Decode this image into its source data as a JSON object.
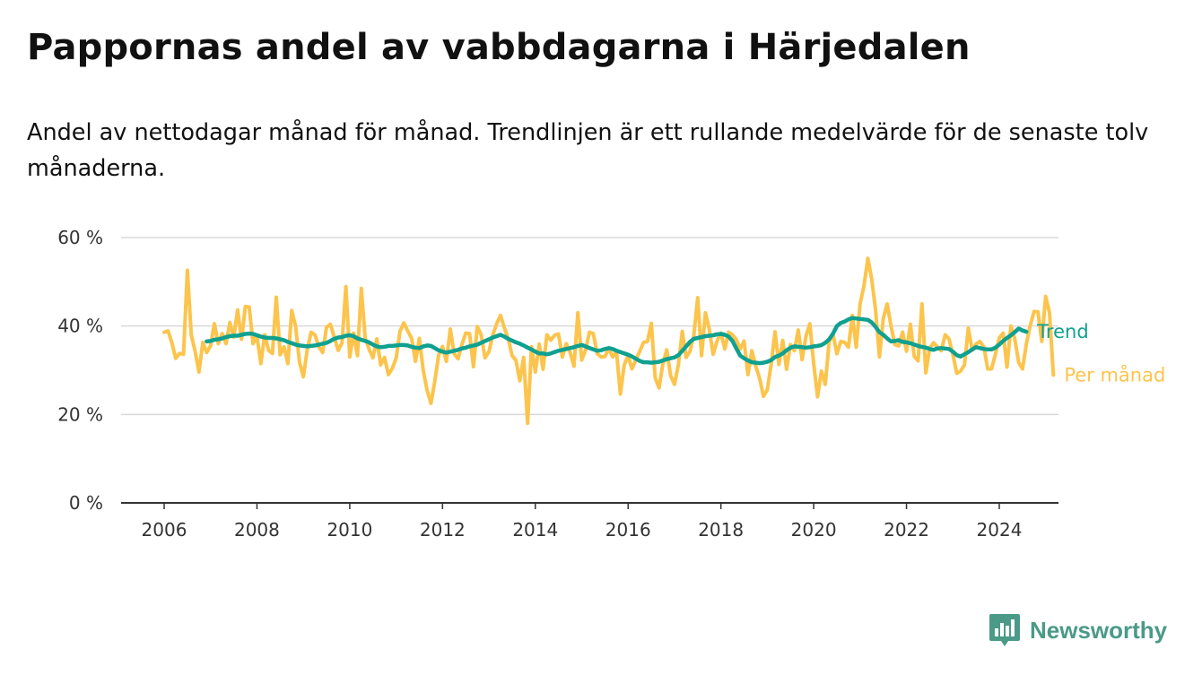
{
  "chart_data": {
    "type": "line",
    "title": "Pappornas andel av vabbdagarna i Härjedalen",
    "subtitle": "Andel av nettodagar månad för månad. Trendlinjen är ett rullande medelvärde för de senaste tolv månaderna.",
    "xlabel": "",
    "ylabel": "",
    "ylim": [
      0,
      60
    ],
    "xlim": [
      2005.7,
      2025.1
    ],
    "grid": true,
    "y_ticks": [
      {
        "value": 0,
        "label": "0 %"
      },
      {
        "value": 20,
        "label": "20 %"
      },
      {
        "value": 40,
        "label": "40 %"
      },
      {
        "value": 60,
        "label": "60 %"
      }
    ],
    "x_ticks": [
      {
        "value": 2006,
        "label": "2006"
      },
      {
        "value": 2008,
        "label": "2008"
      },
      {
        "value": 2010,
        "label": "2010"
      },
      {
        "value": 2012,
        "label": "2012"
      },
      {
        "value": 2014,
        "label": "2014"
      },
      {
        "value": 2016,
        "label": "2016"
      },
      {
        "value": 2018,
        "label": "2018"
      },
      {
        "value": 2020,
        "label": "2020"
      },
      {
        "value": 2022,
        "label": "2022"
      },
      {
        "value": 2024,
        "label": "2024"
      }
    ],
    "series": [
      {
        "name": "Per månad",
        "color": "#fcc44c",
        "x_start": 2006.0,
        "x_step": 0.0833333,
        "values": [
          38.6,
          38.9,
          36.2,
          32.7,
          33.8,
          33.6,
          52.6,
          38.0,
          34.3,
          29.6,
          36.3,
          34.0,
          35.5,
          40.5,
          36.0,
          38.3,
          36.0,
          40.8,
          37.5,
          43.6,
          37.0,
          44.4,
          44.3,
          36.0,
          37.8,
          31.5,
          38.0,
          34.5,
          33.8,
          46.5,
          33.5,
          35.3,
          31.5,
          43.5,
          40.0,
          31.8,
          28.5,
          34.6,
          38.6,
          38.0,
          35.3,
          34.0,
          39.7,
          40.4,
          37.5,
          34.5,
          36.2,
          48.9,
          33.0,
          38.4,
          33.3,
          48.5,
          37.3,
          34.8,
          32.8,
          37.1,
          31.2,
          32.9,
          29.0,
          30.4,
          32.7,
          38.8,
          40.7,
          38.9,
          37.2,
          32.0,
          37.2,
          30.0,
          25.5,
          22.5,
          27.5,
          33.4,
          35.4,
          32.0,
          39.3,
          33.7,
          32.6,
          35.8,
          38.4,
          38.3,
          30.8,
          39.9,
          38.0,
          32.8,
          34.2,
          38.0,
          40.5,
          42.4,
          39.5,
          37.1,
          33.3,
          32.2,
          27.6,
          32.9,
          18.0,
          35.3,
          29.6,
          35.9,
          30.2,
          38.0,
          36.8,
          37.9,
          38.2,
          33.0,
          36.0,
          34.0,
          30.9,
          43.0,
          32.3,
          34.6,
          38.6,
          38.3,
          33.8,
          33.0,
          33.1,
          34.9,
          33.0,
          34.2,
          24.6,
          31.2,
          33.3,
          30.3,
          32.3,
          34.3,
          36.3,
          36.5,
          40.6,
          28.3,
          26.0,
          31.5,
          34.6,
          28.8,
          26.8,
          31.3,
          38.8,
          32.9,
          34.3,
          37.9,
          46.4,
          33.3,
          43.0,
          39.3,
          33.6,
          36.6,
          38.4,
          34.8,
          38.6,
          38.0,
          36.9,
          34.8,
          36.6,
          29.0,
          34.4,
          30.9,
          28.2,
          24.1,
          25.6,
          31.3,
          38.7,
          31.3,
          36.7,
          30.2,
          35.8,
          34.4,
          39.1,
          32.4,
          37.7,
          40.5,
          31.5,
          24.0,
          29.8,
          26.8,
          36.5,
          38.1,
          33.7,
          36.5,
          36.3,
          35.2,
          42.4,
          35.2,
          45.0,
          49.0,
          55.3,
          50.6,
          43.6,
          33.0,
          41.7,
          45.0,
          40.0,
          35.8,
          35.5,
          38.6,
          34.3,
          40.4,
          33.1,
          32.1,
          45.0,
          29.4,
          35.0,
          36.2,
          35.3,
          34.4,
          38.0,
          37.1,
          33.5,
          29.3,
          29.8,
          31.2,
          39.5,
          34.5,
          35.9,
          36.5,
          35.3,
          30.3,
          30.3,
          33.6,
          37.3,
          38.4,
          30.7,
          40.0,
          37.2,
          31.8,
          30.3,
          36.0,
          40.1,
          43.3,
          43.2,
          36.5,
          46.7,
          43.0,
          28.9
        ]
      },
      {
        "name": "Trend",
        "color": "#10a090",
        "x_start": 2006.9167,
        "x_step": 0.0833333,
        "values": [
          36.5,
          36.6,
          36.9,
          37.0,
          37.2,
          37.5,
          37.7,
          37.8,
          37.8,
          38.0,
          38.2,
          38.3,
          38.2,
          37.9,
          37.6,
          37.4,
          37.3,
          37.3,
          37.2,
          37.0,
          36.8,
          36.4,
          36.1,
          35.8,
          35.6,
          35.5,
          35.4,
          35.5,
          35.6,
          35.8,
          36.0,
          36.2,
          36.6,
          37.1,
          37.4,
          37.5,
          37.8,
          37.9,
          37.7,
          37.2,
          36.9,
          36.6,
          36.3,
          35.8,
          35.4,
          35.2,
          35.3,
          35.5,
          35.5,
          35.6,
          35.7,
          35.7,
          35.6,
          35.3,
          35.1,
          35.0,
          35.4,
          35.6,
          35.5,
          35.0,
          34.5,
          34.2,
          34.0,
          34.2,
          34.4,
          34.6,
          34.9,
          35.1,
          35.4,
          35.6,
          35.8,
          36.2,
          36.6,
          37.0,
          37.4,
          37.7,
          38.0,
          37.6,
          37.1,
          36.7,
          36.3,
          36.0,
          35.6,
          35.1,
          34.7,
          34.2,
          33.8,
          33.8,
          33.6,
          33.8,
          34.1,
          34.4,
          34.6,
          34.8,
          35.0,
          35.2,
          35.5,
          35.7,
          35.4,
          35.0,
          34.7,
          34.4,
          34.5,
          34.8,
          35.0,
          34.8,
          34.4,
          34.1,
          33.8,
          33.5,
          33.1,
          32.6,
          32.1,
          31.8,
          31.8,
          31.7,
          31.8,
          31.9,
          32.2,
          32.5,
          32.7,
          32.9,
          33.4,
          34.4,
          35.4,
          36.4,
          37.1,
          37.3,
          37.5,
          37.7,
          37.8,
          37.9,
          38.1,
          38.2,
          38.0,
          37.6,
          36.6,
          34.9,
          33.3,
          32.7,
          32.2,
          31.8,
          31.7,
          31.6,
          31.7,
          31.9,
          32.3,
          33.0,
          33.3,
          33.8,
          34.5,
          35.1,
          35.4,
          35.3,
          35.2,
          35.1,
          35.2,
          35.4,
          35.5,
          35.7,
          36.2,
          37.0,
          38.3,
          40.0,
          40.7,
          41.0,
          41.5,
          41.8,
          41.7,
          41.6,
          41.5,
          41.4,
          40.8,
          39.8,
          38.6,
          38.0,
          37.2,
          36.5,
          36.6,
          36.8,
          36.4,
          36.3,
          36.1,
          35.8,
          35.5,
          35.3,
          35.1,
          34.8,
          34.6,
          34.9,
          35.0,
          34.9,
          34.8,
          34.2,
          33.4,
          33.1,
          33.6,
          34.1,
          34.7,
          35.2,
          35.0,
          34.8,
          34.7,
          34.7,
          35.1,
          35.8,
          36.6,
          37.3,
          37.9,
          38.6,
          39.4,
          39.0,
          38.7
        ]
      }
    ],
    "legend": [
      {
        "label": "Trend",
        "color": "#10a090"
      },
      {
        "label": "Per månad",
        "color": "#fcc44c"
      }
    ]
  },
  "brand": {
    "name": "Newsworthy",
    "color": "#4a9a87"
  }
}
